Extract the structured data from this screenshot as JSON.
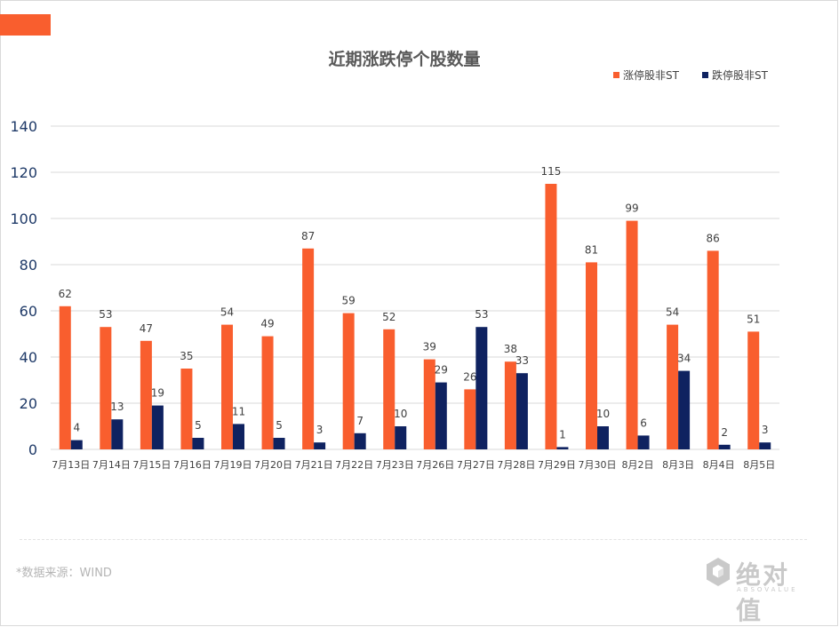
{
  "colors": {
    "accent": "#f95e2e",
    "series_up": "#f95e2e",
    "series_down": "#0f2260",
    "grid": "#d9d9d9",
    "axis_text": "#1f3a68",
    "label_text": "#404040"
  },
  "footer": {
    "source": "*数据来源：WIND",
    "logo_text": "绝对值",
    "logo_sub": "ABSOVALUE",
    "logo_icon": "hexagon-cube-icon"
  },
  "chart_data": {
    "type": "bar",
    "title": "近期涨跌停个股数量",
    "xlabel": "",
    "ylabel": "",
    "ylim": [
      0,
      140
    ],
    "yticks": [
      0,
      20,
      40,
      60,
      80,
      100,
      120,
      140
    ],
    "grid": true,
    "legend_position": "top-right",
    "categories": [
      "7月13日",
      "7月14日",
      "7月15日",
      "7月16日",
      "7月19日",
      "7月20日",
      "7月21日",
      "7月22日",
      "7月23日",
      "7月26日",
      "7月27日",
      "7月28日",
      "7月29日",
      "7月30日",
      "8月2日",
      "8月3日",
      "8月4日",
      "8月5日"
    ],
    "series": [
      {
        "name": "涨停股非ST",
        "color": "#f95e2e",
        "values": [
          62,
          53,
          47,
          35,
          54,
          49,
          87,
          59,
          52,
          39,
          26,
          38,
          115,
          81,
          99,
          54,
          86,
          51
        ]
      },
      {
        "name": "跌停股非ST",
        "color": "#0f2260",
        "values": [
          4,
          13,
          19,
          5,
          11,
          5,
          3,
          7,
          10,
          29,
          53,
          33,
          1,
          10,
          6,
          34,
          2,
          3
        ]
      }
    ]
  }
}
